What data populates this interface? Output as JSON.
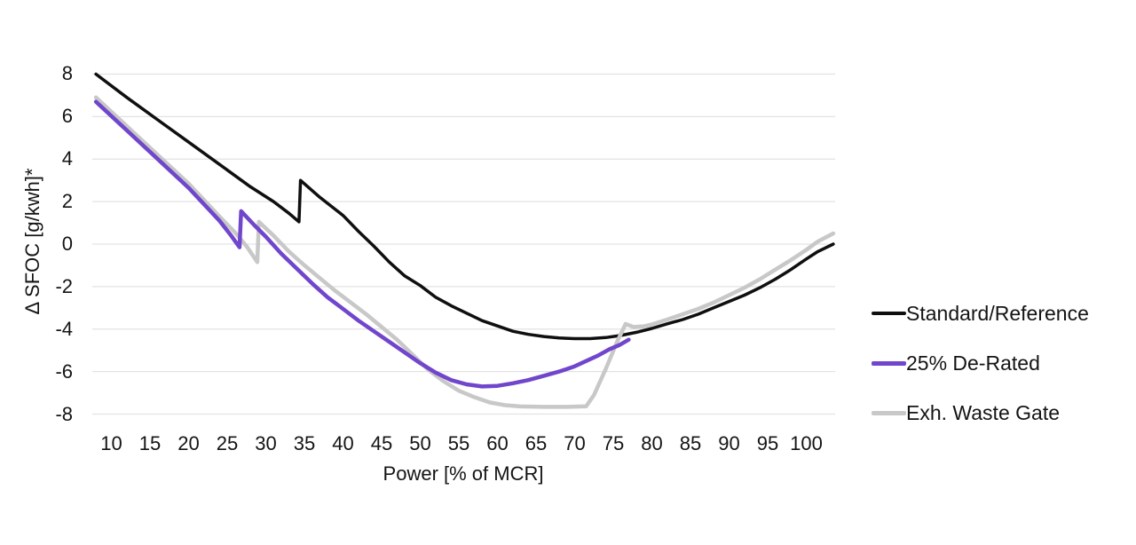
{
  "chart_data": {
    "type": "line",
    "title": "",
    "xlabel": "Power [% of MCR]",
    "ylabel": "Δ SFOC [g/kwh]*",
    "x_ticks": [
      10,
      15,
      20,
      25,
      30,
      35,
      40,
      45,
      50,
      55,
      60,
      65,
      70,
      75,
      80,
      85,
      90,
      95,
      100
    ],
    "y_ticks": [
      8,
      6,
      4,
      2,
      0,
      -2,
      -4,
      -6,
      -8
    ],
    "xlim": [
      7.5,
      103.5
    ],
    "ylim": [
      -8,
      8
    ],
    "grid": "horizontal",
    "gridline_color": "#e3e3e3",
    "background_color": "#ffffff",
    "text_color": "#141414",
    "legend_position": "right-middle",
    "series": [
      {
        "name": "Standard/Reference",
        "color": "#0f0f0f",
        "line_width": 3.5,
        "points": [
          [
            8,
            8.0
          ],
          [
            12,
            6.9
          ],
          [
            16,
            5.85
          ],
          [
            20,
            4.8
          ],
          [
            24,
            3.75
          ],
          [
            28,
            2.7
          ],
          [
            31,
            2.0
          ],
          [
            33,
            1.45
          ],
          [
            34.3,
            1.05
          ],
          [
            34.5,
            3.0
          ],
          [
            37,
            2.2
          ],
          [
            40,
            1.35
          ],
          [
            42,
            0.6
          ],
          [
            44,
            -0.1
          ],
          [
            46,
            -0.85
          ],
          [
            48,
            -1.5
          ],
          [
            50,
            -1.95
          ],
          [
            52,
            -2.5
          ],
          [
            54,
            -2.9
          ],
          [
            56,
            -3.25
          ],
          [
            58,
            -3.6
          ],
          [
            60,
            -3.85
          ],
          [
            62,
            -4.1
          ],
          [
            64,
            -4.25
          ],
          [
            66,
            -4.35
          ],
          [
            68,
            -4.42
          ],
          [
            70,
            -4.45
          ],
          [
            72,
            -4.45
          ],
          [
            74,
            -4.4
          ],
          [
            76,
            -4.3
          ],
          [
            78,
            -4.15
          ],
          [
            80,
            -3.97
          ],
          [
            82,
            -3.75
          ],
          [
            84,
            -3.55
          ],
          [
            86,
            -3.3
          ],
          [
            88,
            -3.0
          ],
          [
            90,
            -2.7
          ],
          [
            92,
            -2.4
          ],
          [
            94,
            -2.05
          ],
          [
            96,
            -1.65
          ],
          [
            98,
            -1.2
          ],
          [
            100,
            -0.7
          ],
          [
            101.5,
            -0.35
          ],
          [
            103.5,
            0.0
          ]
        ]
      },
      {
        "name": "Exh. Waste Gate",
        "color": "#c8c8c8",
        "line_width": 4.5,
        "points": [
          [
            8,
            6.9
          ],
          [
            12,
            5.55
          ],
          [
            16,
            4.2
          ],
          [
            20,
            2.85
          ],
          [
            24,
            1.3
          ],
          [
            26,
            0.55
          ],
          [
            27.5,
            -0.1
          ],
          [
            28.9,
            -0.85
          ],
          [
            29.1,
            1.05
          ],
          [
            31,
            0.4
          ],
          [
            33,
            -0.35
          ],
          [
            35,
            -1.0
          ],
          [
            37,
            -1.6
          ],
          [
            39,
            -2.2
          ],
          [
            41,
            -2.75
          ],
          [
            43,
            -3.3
          ],
          [
            45,
            -3.9
          ],
          [
            47,
            -4.5
          ],
          [
            49,
            -5.2
          ],
          [
            51,
            -5.9
          ],
          [
            53,
            -6.45
          ],
          [
            55,
            -6.9
          ],
          [
            57,
            -7.2
          ],
          [
            59,
            -7.45
          ],
          [
            61,
            -7.58
          ],
          [
            63,
            -7.64
          ],
          [
            66,
            -7.66
          ],
          [
            69,
            -7.66
          ],
          [
            71.5,
            -7.63
          ],
          [
            72.5,
            -7.1
          ],
          [
            74,
            -5.9
          ],
          [
            75.5,
            -4.6
          ],
          [
            76.6,
            -3.76
          ],
          [
            77.6,
            -3.9
          ],
          [
            79,
            -3.87
          ],
          [
            80,
            -3.78
          ],
          [
            82,
            -3.55
          ],
          [
            84,
            -3.3
          ],
          [
            86,
            -3.05
          ],
          [
            88,
            -2.75
          ],
          [
            90,
            -2.4
          ],
          [
            92,
            -2.05
          ],
          [
            94,
            -1.65
          ],
          [
            96,
            -1.2
          ],
          [
            98,
            -0.75
          ],
          [
            100,
            -0.27
          ],
          [
            101.5,
            0.12
          ],
          [
            103.5,
            0.5
          ]
        ]
      },
      {
        "name": "25% De-Rated",
        "color": "#7046cc",
        "line_width": 4.5,
        "points": [
          [
            8,
            6.7
          ],
          [
            12,
            5.35
          ],
          [
            16,
            4.0
          ],
          [
            20,
            2.65
          ],
          [
            24,
            1.1
          ],
          [
            25.5,
            0.4
          ],
          [
            26.6,
            -0.15
          ],
          [
            26.8,
            1.55
          ],
          [
            28.5,
            0.9
          ],
          [
            30,
            0.35
          ],
          [
            32,
            -0.45
          ],
          [
            34,
            -1.15
          ],
          [
            36,
            -1.85
          ],
          [
            38,
            -2.5
          ],
          [
            40,
            -3.05
          ],
          [
            42,
            -3.6
          ],
          [
            44,
            -4.1
          ],
          [
            46,
            -4.6
          ],
          [
            48,
            -5.1
          ],
          [
            50,
            -5.6
          ],
          [
            52,
            -6.05
          ],
          [
            54,
            -6.4
          ],
          [
            56,
            -6.6
          ],
          [
            58,
            -6.7
          ],
          [
            60,
            -6.67
          ],
          [
            62,
            -6.55
          ],
          [
            64,
            -6.4
          ],
          [
            66,
            -6.2
          ],
          [
            68,
            -6.0
          ],
          [
            70,
            -5.75
          ],
          [
            71.5,
            -5.5
          ],
          [
            73,
            -5.25
          ],
          [
            74.5,
            -4.95
          ],
          [
            75.8,
            -4.75
          ],
          [
            77,
            -4.5
          ]
        ]
      }
    ],
    "legend": [
      {
        "label": "Standard/Reference",
        "color": "#0f0f0f",
        "swatch_height": 4
      },
      {
        "label": "25% De-Rated",
        "color": "#7046cc",
        "swatch_height": 5
      },
      {
        "label": "Exh. Waste Gate",
        "color": "#c8c8c8",
        "swatch_height": 5
      }
    ]
  }
}
